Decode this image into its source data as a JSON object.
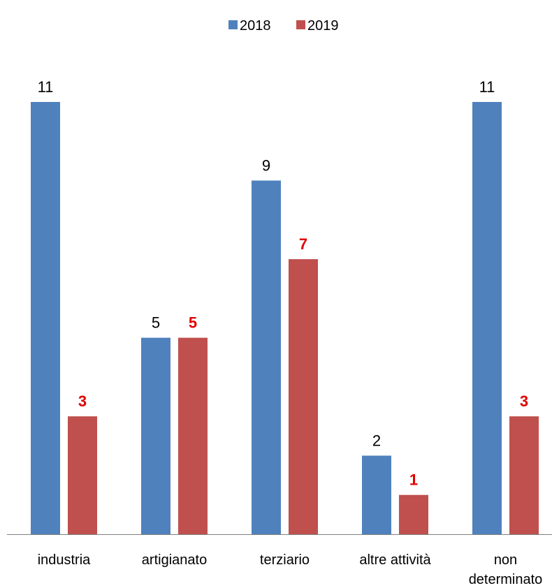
{
  "chart_data": {
    "type": "bar",
    "categories": [
      "industria",
      "artigianato",
      "terziario",
      "altre attività",
      "non determinato"
    ],
    "series": [
      {
        "name": "2018",
        "values": [
          11,
          5,
          9,
          2,
          11
        ],
        "color": "#4F81BD",
        "label_color": "#000000"
      },
      {
        "name": "2019",
        "values": [
          3,
          5,
          7,
          1,
          3
        ],
        "color": "#C0504D",
        "label_color": "#E00000"
      }
    ],
    "ylim": [
      0,
      11
    ],
    "grid": false,
    "legend_position": "top-center",
    "data_labels": true
  }
}
